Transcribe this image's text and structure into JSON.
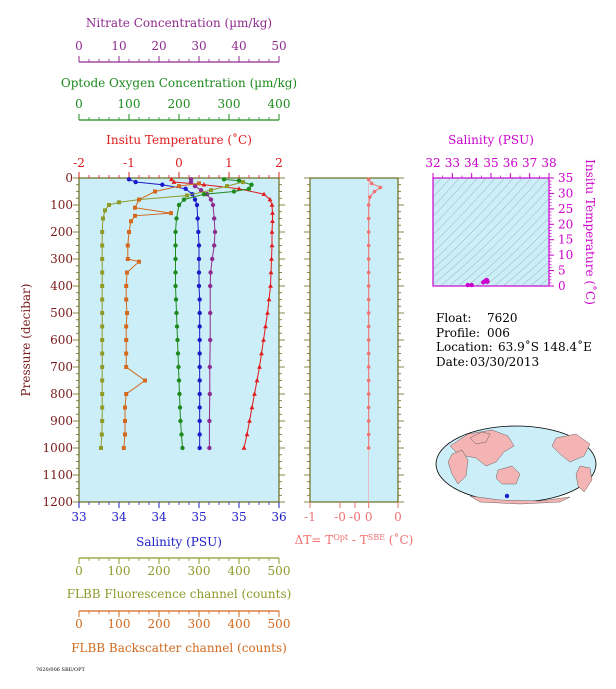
{
  "chart_data": {
    "type": "scatter",
    "main_panel": {
      "ylabel": "Pressure (decibar)",
      "ylim": [
        0,
        1200
      ],
      "yticks": [
        "0",
        "100",
        "200",
        "300",
        "400",
        "500",
        "600",
        "700",
        "800",
        "900",
        "1000",
        "1100",
        "1200"
      ],
      "ytick_values": [
        0,
        100,
        200,
        300,
        400,
        500,
        600,
        700,
        800,
        900,
        1000,
        1100,
        1200
      ],
      "axes": {
        "nitrate": {
          "label": "Nitrate Concentration (µm/kg)",
          "range": [
            0,
            50
          ],
          "ticks": [
            "0",
            "10",
            "20",
            "30",
            "40",
            "50"
          ],
          "tick_values": [
            0,
            10,
            20,
            30,
            40,
            50
          ],
          "color": "#8e2b8e"
        },
        "oxygen": {
          "label": "Optode Oxygen Concentration (µm/kg)",
          "range": [
            0,
            400
          ],
          "ticks": [
            "0",
            "100",
            "200",
            "300",
            "400"
          ],
          "tick_values": [
            0,
            100,
            200,
            300,
            400
          ],
          "color": "#1e8a1e"
        },
        "temperature": {
          "label": "Insitu Temperature (˚C)",
          "range": [
            -2,
            2
          ],
          "ticks": [
            "-2",
            "-1",
            "0",
            "1",
            "2"
          ],
          "tick_values": [
            -2,
            -1,
            0,
            1,
            2
          ],
          "color": "#e01b1b"
        },
        "salinity": {
          "label": "Salinity (PSU)",
          "range": [
            33,
            36
          ],
          "ticks": [
            "33",
            "34",
            "34",
            "35",
            "35",
            "36"
          ],
          "tick_values": [
            33,
            33.6,
            34.2,
            34.8,
            35.4,
            36
          ],
          "color": "#1c1cc8"
        },
        "fluorescence": {
          "label": "FLBB Fluorescence channel (counts)",
          "range": [
            0,
            500
          ],
          "ticks": [
            "0",
            "100",
            "200",
            "300",
            "400",
            "500"
          ],
          "tick_values": [
            0,
            100,
            200,
            300,
            400,
            500
          ],
          "color": "#8e9a2a"
        },
        "backscatter": {
          "label": "FLBB Backscatter channel (counts)",
          "range": [
            0,
            500
          ],
          "ticks": [
            "0",
            "100",
            "200",
            "300",
            "400",
            "500"
          ],
          "tick_values": [
            0,
            100,
            200,
            300,
            400,
            500
          ],
          "color": "#d2691e"
        }
      },
      "series": [
        {
          "axis": "temperature",
          "marker": "triangle",
          "points": [
            [
              -0.15,
              5
            ],
            [
              -0.1,
              15
            ],
            [
              0.5,
              25
            ],
            [
              1.2,
              40
            ],
            [
              1.7,
              60
            ],
            [
              1.82,
              80
            ],
            [
              1.86,
              100
            ],
            [
              1.87,
              130
            ],
            [
              1.87,
              160
            ],
            [
              1.86,
              200
            ],
            [
              1.86,
              250
            ],
            [
              1.85,
              300
            ],
            [
              1.84,
              350
            ],
            [
              1.83,
              400
            ],
            [
              1.8,
              450
            ],
            [
              1.77,
              500
            ],
            [
              1.73,
              550
            ],
            [
              1.69,
              600
            ],
            [
              1.65,
              650
            ],
            [
              1.61,
              700
            ],
            [
              1.56,
              750
            ],
            [
              1.51,
              800
            ],
            [
              1.46,
              850
            ],
            [
              1.41,
              900
            ],
            [
              1.36,
              950
            ],
            [
              1.3,
              1000
            ]
          ]
        },
        {
          "axis": "salinity",
          "marker": "circle",
          "points": [
            [
              33.75,
              5
            ],
            [
              33.85,
              15
            ],
            [
              34.25,
              25
            ],
            [
              34.6,
              40
            ],
            [
              34.7,
              60
            ],
            [
              34.74,
              80
            ],
            [
              34.77,
              100
            ],
            [
              34.78,
              150
            ],
            [
              34.79,
              200
            ],
            [
              34.8,
              250
            ],
            [
              34.8,
              300
            ],
            [
              34.8,
              350
            ],
            [
              34.8,
              400
            ],
            [
              34.81,
              450
            ],
            [
              34.81,
              500
            ],
            [
              34.81,
              550
            ],
            [
              34.81,
              600
            ],
            [
              34.81,
              650
            ],
            [
              34.81,
              700
            ],
            [
              34.81,
              750
            ],
            [
              34.81,
              800
            ],
            [
              34.81,
              850
            ],
            [
              34.81,
              900
            ],
            [
              34.81,
              950
            ],
            [
              34.81,
              1000
            ]
          ]
        },
        {
          "axis": "nitrate",
          "marker": "circle",
          "points": [
            [
              28,
              5
            ],
            [
              28,
              15
            ],
            [
              29,
              30
            ],
            [
              30.5,
              45
            ],
            [
              32,
              60
            ],
            [
              33,
              80
            ],
            [
              33.5,
              100
            ],
            [
              33.8,
              150
            ],
            [
              34,
              200
            ],
            [
              33.8,
              250
            ],
            [
              33.3,
              300
            ],
            [
              32.9,
              350
            ],
            [
              32.8,
              400
            ],
            [
              32.8,
              500
            ],
            [
              32.8,
              600
            ],
            [
              32.7,
              700
            ],
            [
              32.7,
              800
            ],
            [
              32.6,
              900
            ],
            [
              32.6,
              1000
            ]
          ]
        },
        {
          "axis": "oxygen",
          "marker": "circle",
          "points": [
            [
              290,
              5
            ],
            [
              320,
              10
            ],
            [
              345,
              25
            ],
            [
              340,
              40
            ],
            [
              310,
              50
            ],
            [
              250,
              60
            ],
            [
              210,
              80
            ],
            [
              200,
              100
            ],
            [
              195,
              150
            ],
            [
              193,
              200
            ],
            [
              193,
              250
            ],
            [
              193,
              300
            ],
            [
              193,
              350
            ],
            [
              193,
              400
            ],
            [
              194,
              450
            ],
            [
              195,
              500
            ],
            [
              196,
              550
            ],
            [
              197,
              600
            ],
            [
              198,
              650
            ],
            [
              199,
              700
            ],
            [
              200,
              750
            ],
            [
              201,
              800
            ],
            [
              202,
              850
            ],
            [
              203,
              900
            ],
            [
              205,
              950
            ],
            [
              207,
              1000
            ]
          ]
        },
        {
          "axis": "fluorescence",
          "marker": "square",
          "points": [
            [
              410,
              15
            ],
            [
              370,
              30
            ],
            [
              330,
              45
            ],
            [
              270,
              65
            ],
            [
              150,
              80
            ],
            [
              100,
              90
            ],
            [
              75,
              100
            ],
            [
              65,
              120
            ],
            [
              60,
              150
            ],
            [
              58,
              200
            ],
            [
              58,
              250
            ],
            [
              58,
              300
            ],
            [
              58,
              350
            ],
            [
              58,
              400
            ],
            [
              58,
              450
            ],
            [
              58,
              500
            ],
            [
              58,
              550
            ],
            [
              58,
              600
            ],
            [
              58,
              650
            ],
            [
              58,
              700
            ],
            [
              58,
              750
            ],
            [
              58,
              800
            ],
            [
              58,
              850
            ],
            [
              58,
              900
            ],
            [
              57,
              950
            ],
            [
              55,
              1000
            ]
          ]
        },
        {
          "axis": "backscatter",
          "marker": "square",
          "points": [
            [
              300,
              20
            ],
            [
              250,
              30
            ],
            [
              190,
              50
            ],
            [
              150,
              80
            ],
            [
              140,
              110
            ],
            [
              230,
              130
            ],
            [
              140,
              140
            ],
            [
              130,
              160
            ],
            [
              125,
              200
            ],
            [
              122,
              250
            ],
            [
              122,
              300
            ],
            [
              150,
              310
            ],
            [
              120,
              350
            ],
            [
              118,
              400
            ],
            [
              118,
              450
            ],
            [
              120,
              500
            ],
            [
              118,
              550
            ],
            [
              118,
              600
            ],
            [
              118,
              650
            ],
            [
              118,
              700
            ],
            [
              165,
              750
            ],
            [
              118,
              800
            ],
            [
              115,
              850
            ],
            [
              115,
              900
            ],
            [
              115,
              950
            ],
            [
              112,
              1000
            ]
          ]
        }
      ]
    },
    "delta_panel": {
      "xlabel_main": "ΔT= T",
      "xlabel_sup1": "Opt",
      "xlabel_mid": " - T",
      "xlabel_sup2": "SBE",
      "xlabel_unit": " (˚C)",
      "xlim": [
        -1,
        0.5
      ],
      "ticks": [
        "-1",
        "-0",
        "-0",
        "0",
        "0"
      ],
      "tick_values": [
        -1,
        -0.5,
        -0.25,
        0,
        0.5
      ],
      "color": "#f07070",
      "points": [
        [
          0,
          5
        ],
        [
          0.05,
          20
        ],
        [
          0.2,
          35
        ],
        [
          0.1,
          50
        ],
        [
          0.02,
          70
        ],
        [
          0,
          100
        ],
        [
          0,
          150
        ],
        [
          0,
          200
        ],
        [
          0,
          250
        ],
        [
          0,
          300
        ],
        [
          0,
          350
        ],
        [
          0,
          400
        ],
        [
          0,
          450
        ],
        [
          0,
          500
        ],
        [
          0,
          550
        ],
        [
          0,
          600
        ],
        [
          0,
          650
        ],
        [
          0,
          700
        ],
        [
          0,
          750
        ],
        [
          0,
          800
        ],
        [
          0,
          850
        ],
        [
          0,
          900
        ],
        [
          0,
          950
        ],
        [
          0,
          1000
        ]
      ]
    },
    "ts_panel": {
      "xlabel": "Salinity (PSU)",
      "ylabel": "Insitu Temperature (˚C)",
      "xlim": [
        32,
        38
      ],
      "ylim": [
        0,
        35
      ],
      "xticks": [
        "32",
        "33",
        "34",
        "35",
        "36",
        "37",
        "38"
      ],
      "xtick_values": [
        32,
        33,
        34,
        35,
        36,
        37,
        38
      ],
      "yticks": [
        "0",
        "5",
        "10",
        "15",
        "20",
        "25",
        "30",
        "35"
      ],
      "ytick_values": [
        0,
        5,
        10,
        15,
        20,
        25,
        30,
        35
      ],
      "color": "#cc00cc",
      "points": [
        [
          33.8,
          -0.5
        ],
        [
          34.0,
          -0.3
        ],
        [
          34.6,
          1.2
        ],
        [
          34.7,
          1.6
        ],
        [
          34.74,
          1.8
        ],
        [
          34.77,
          1.9
        ],
        [
          34.78,
          1.85
        ],
        [
          34.79,
          1.8
        ],
        [
          34.8,
          1.7
        ],
        [
          34.8,
          1.6
        ],
        [
          34.81,
          1.5
        ],
        [
          34.81,
          1.4
        ]
      ]
    },
    "info": {
      "float_label": "Float:",
      "float_value": "7620",
      "profile_label": "Profile:",
      "profile_value": "006",
      "location_label": "Location:",
      "location_value": "63.9˚S  148.4˚E",
      "date_label": "Date:",
      "date_value": "03/30/2013"
    },
    "footer_text": "7620/006 SBE/OPT"
  }
}
